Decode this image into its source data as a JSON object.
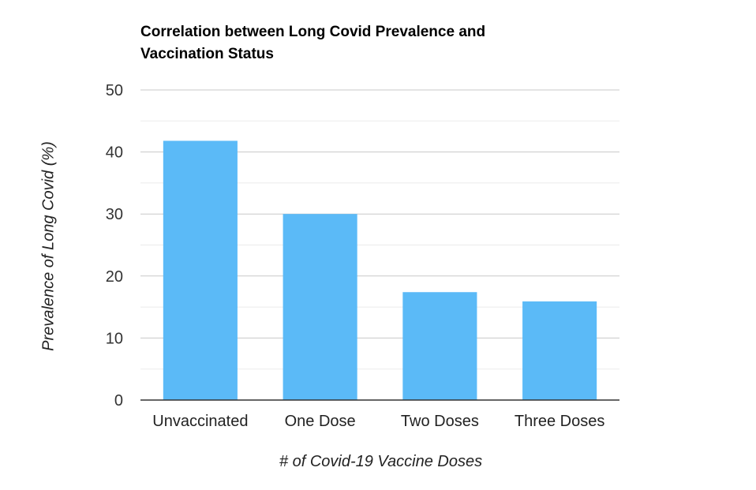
{
  "chart_data": {
    "type": "bar",
    "title_lines": [
      "Correlation between Long Covid Prevalence and",
      "Vaccination Status"
    ],
    "categories": [
      "Unvaccinated",
      "One Dose",
      "Two Doses",
      "Three Doses"
    ],
    "values": [
      41.8,
      30.0,
      17.4,
      15.9
    ],
    "xlabel": "# of Covid-19 Vaccine Doses",
    "ylabel": "Prevalence of Long Covid (%)",
    "ylim": [
      0,
      50
    ],
    "yticks": [
      "0",
      "10",
      "20",
      "30",
      "40",
      "50"
    ],
    "grid": true,
    "minor_grid": true,
    "bar_color": "#5bbaf7"
  }
}
